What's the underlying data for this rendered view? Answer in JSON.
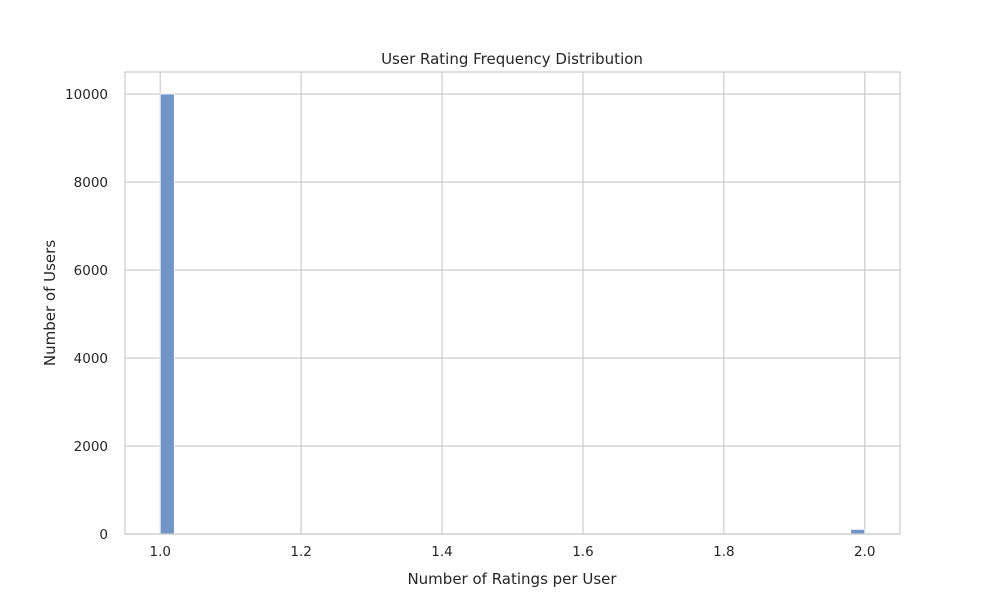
{
  "chart_data": {
    "type": "bar",
    "title": "User Rating Frequency Distribution",
    "xlabel": "Number of Ratings per User",
    "ylabel": "Number of Users",
    "xlim": [
      0.95,
      2.05
    ],
    "ylim": [
      0,
      10500
    ],
    "xticks": [
      "1.0",
      "1.2",
      "1.4",
      "1.6",
      "1.8",
      "2.0"
    ],
    "yticks": [
      "0",
      "2000",
      "4000",
      "6000",
      "8000",
      "10000"
    ],
    "bin_width": 0.02,
    "bins": [
      {
        "x_start": 1.0,
        "value": 10000
      },
      {
        "x_start": 1.98,
        "value": 105
      }
    ],
    "grid": true,
    "bar_color": "#7294c6",
    "bar_edge_color": "#ffffff",
    "grid_color": "#cccccc",
    "frame_color": "#cccccc"
  }
}
